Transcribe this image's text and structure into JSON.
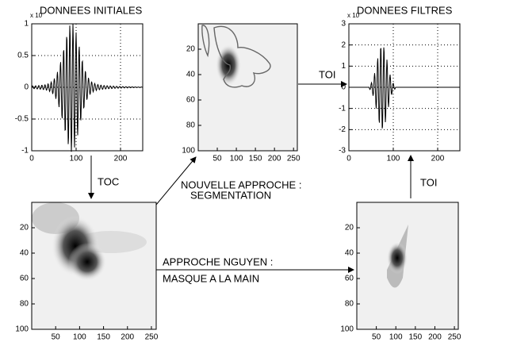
{
  "panels": [
    {
      "title": "DONNEES INITIALES",
      "exponent": "x 10",
      "xlim": [
        0,
        250
      ],
      "ylim": [
        -1,
        1
      ],
      "xticks": [
        0,
        100,
        200
      ],
      "yticks": [
        1,
        0.5,
        0,
        -0.5,
        -1
      ],
      "grid": true
    },
    {
      "xlim": [
        0,
        260
      ],
      "ylim": [
        0,
        100
      ],
      "xticks": [
        50,
        100,
        150,
        200,
        250
      ],
      "yticks": [
        20,
        40,
        60,
        80,
        100
      ],
      "grid": false
    },
    {
      "title": "DONNEES FILTRES",
      "exponent": "x 10",
      "xlim": [
        0,
        250
      ],
      "ylim": [
        -3,
        3
      ],
      "xticks": [
        0,
        100,
        200
      ],
      "yticks": [
        3,
        2,
        1,
        0,
        -1,
        -2,
        -3
      ],
      "grid": true
    },
    {
      "xlim": [
        0,
        260
      ],
      "ylim": [
        0,
        100
      ],
      "xticks": [
        50,
        100,
        150,
        200,
        250
      ],
      "yticks": [
        20,
        40,
        60,
        80,
        100
      ],
      "grid": false
    },
    {
      "xlim": [
        0,
        260
      ],
      "ylim": [
        0,
        100
      ],
      "xticks": [
        50,
        100,
        150,
        200,
        250
      ],
      "yticks": [
        20,
        40,
        60,
        80,
        100
      ],
      "grid": false
    }
  ],
  "arrows": {
    "toc": "TOC",
    "toi_top": "TOI",
    "toi_right": "TOI",
    "segmentation": [
      "NOUVELLE APPROCHE :",
      "SEGMENTATION"
    ],
    "nguyen": [
      "APPROCHE NGUYEN :",
      "MASQUE A LA MAIN"
    ]
  }
}
